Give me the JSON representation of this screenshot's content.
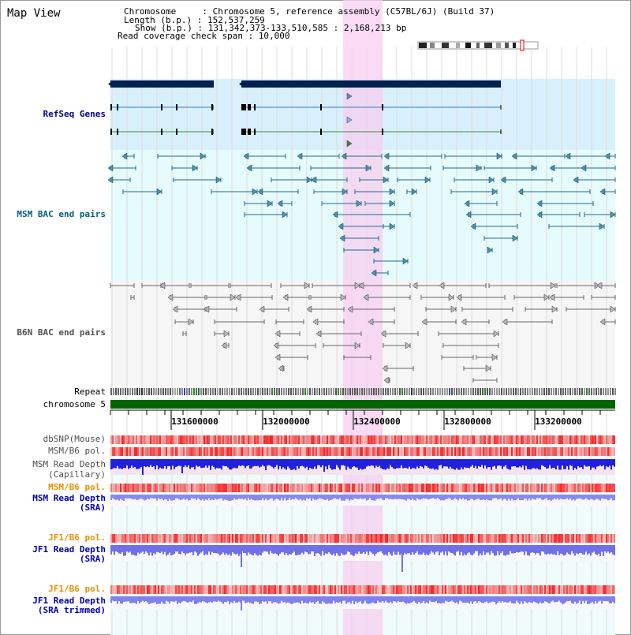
{
  "view": {
    "title": "Map View",
    "chromosome_line": "Chromosome     : Chromosome 5, reference assembly (C57BL/6J) (Build 37)",
    "length_line": "Length (b.p.) : 152,537,259",
    "show_line": "Show (b.p.) : 131,342,373-133,510,585 : 2,168,213 bp",
    "coverage_line": "Read coverage check span : 10,000"
  },
  "tracks": {
    "refseq": "RefSeq Genes",
    "msm_bac": "MSM BAC end pairs",
    "b6n_bac": "B6N BAC end pairs",
    "repeat": "Repeat",
    "chromosome": "chromosome 5",
    "dbsnp": "dbSNP(Mouse)",
    "msm_b6_pol_1": "MSM/B6 pol.",
    "msm_depth_cap_1": "MSM Read Depth",
    "msm_depth_cap_2": "(Capillary)",
    "msm_b6_pol_2": "MSM/B6 pol.",
    "msm_depth_sra_1": "MSM Read Depth",
    "msm_depth_sra_2": "(SRA)",
    "jf1_b6_pol_1": "JF1/B6 pol.",
    "jf1_depth_sra_1": "JF1 Read Depth",
    "jf1_depth_sra_2": "(SRA)",
    "jf1_b6_pol_2": "JF1/B6 pol.",
    "jf1_depth_trim_1": "JF1 Read Depth",
    "jf1_depth_trim_2": "(SRA trimmed)"
  },
  "ruler": {
    "ticks": [
      "131600000",
      "132000000",
      "132400000",
      "132800000",
      "133200000"
    ]
  },
  "colors": {
    "refseq_label": "#00008b",
    "msm_label": "#006080",
    "b6n_label": "#505050",
    "orange_label": "#e89000",
    "blue_label": "#0000aa",
    "highlight": "#f8d8f0",
    "gene_bar": "#002050",
    "chromosome_green": "#006400"
  }
}
